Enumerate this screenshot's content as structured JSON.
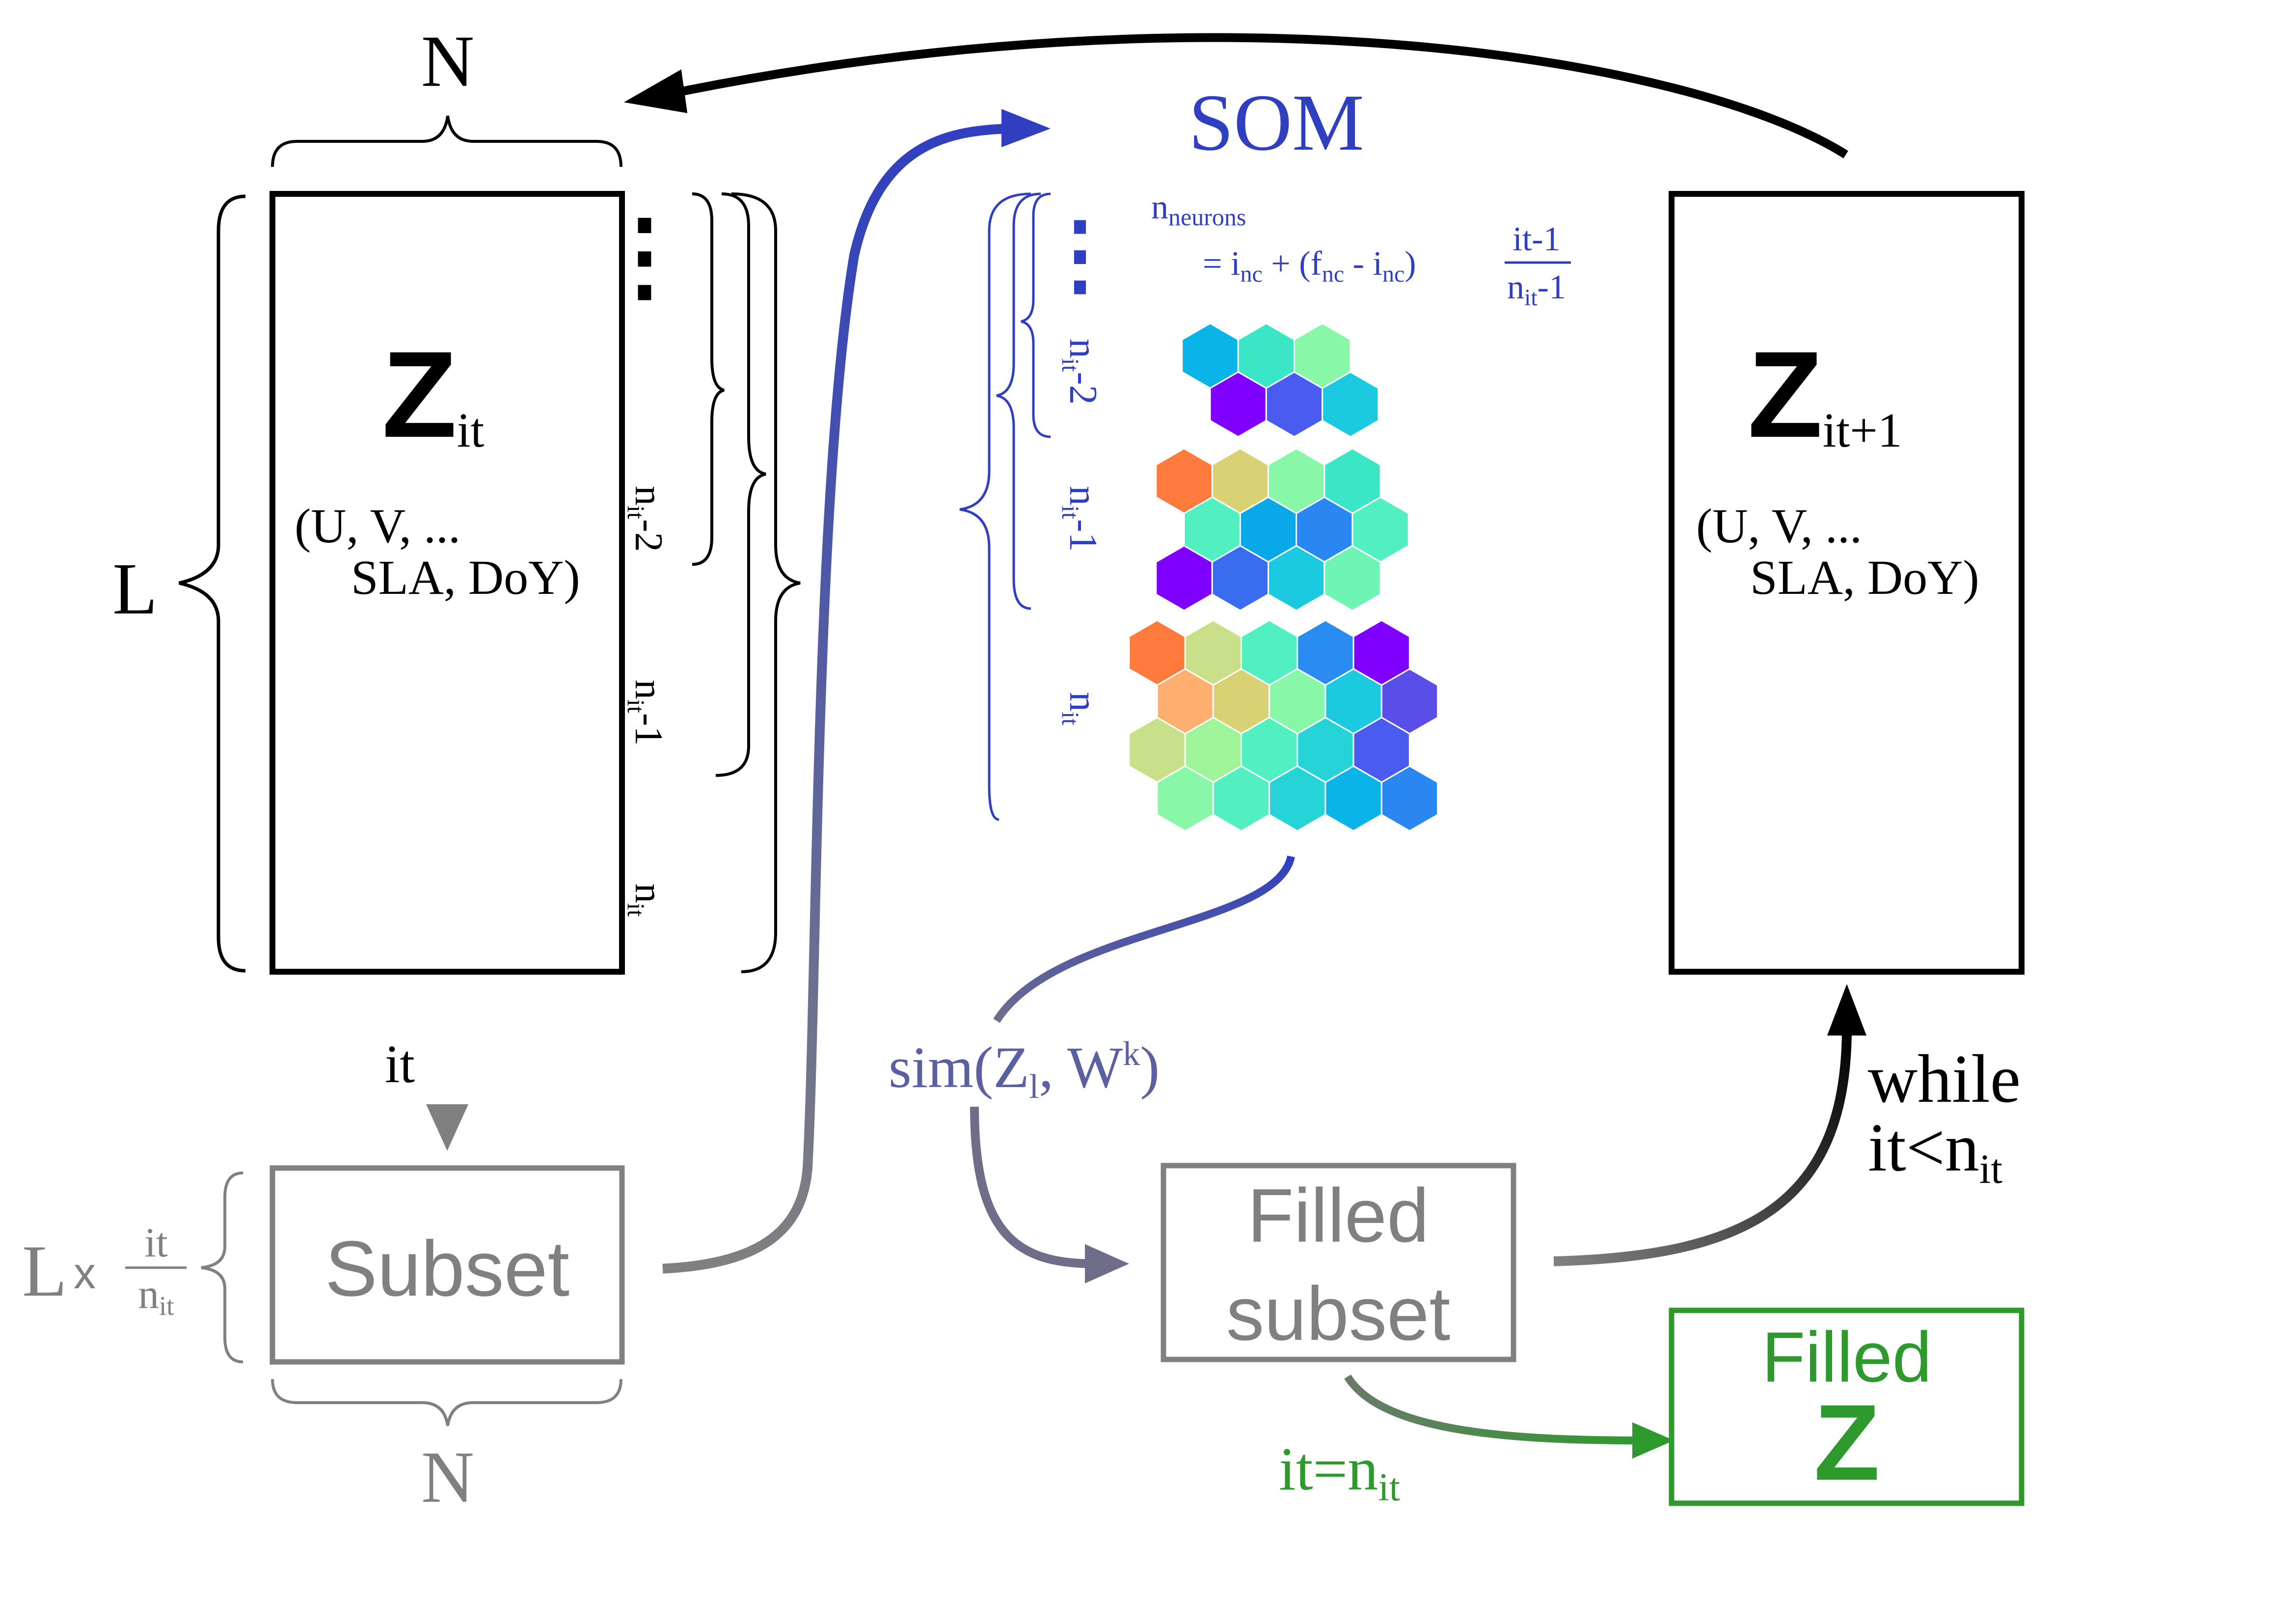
{
  "colors": {
    "black": "#000000",
    "blue": "#2f3fbf",
    "blue_sim": "#5a60a0",
    "gray": "#808080",
    "gray_dark": "#6f6f6f",
    "green": "#2e9a2e"
  },
  "matrix_left": {
    "width_label": "N",
    "height_label": "L",
    "title": "Z",
    "subscript": "it",
    "vars_line1": "(U, V, ...",
    "vars_line2": "SLA, DoY)",
    "dots": "⋮",
    "brace_labels": {
      "n_it_minus_2": {
        "base": "n",
        "sub": "it",
        "suffix": "-2"
      },
      "n_it_minus_1": {
        "base": "n",
        "sub": "it",
        "suffix": "-1"
      },
      "n_it": {
        "base": "n",
        "sub": "it"
      }
    }
  },
  "matrix_right": {
    "title": "Z",
    "subscript": "it+1",
    "vars_line1": "(U, V, ...",
    "vars_line2": "SLA, DoY)"
  },
  "arrow_down_label": "it",
  "subset": {
    "label": "Subset",
    "width_label": "N",
    "height_prefix": "L",
    "times": "x",
    "frac_num": "it",
    "frac_den": {
      "base": "n",
      "sub": "it"
    }
  },
  "som": {
    "title": "SOM",
    "formula": {
      "lhs": {
        "base": "n",
        "sub": "neurons"
      },
      "rhs_text_a": "= i",
      "rhs_sub_a": "nc",
      "rhs_text_b": " + (f",
      "rhs_sub_b": "nc",
      "rhs_text_c": " - i",
      "rhs_sub_c": "nc",
      "rhs_text_d": ")",
      "frac_num": "it-1",
      "frac_den": {
        "base": "n",
        "sub": "it",
        "suffix": "-1"
      }
    },
    "dots": "⋮",
    "brace_labels": {
      "n_it_minus_2": {
        "base": "n",
        "sub": "it",
        "suffix": "-2"
      },
      "n_it_minus_1": {
        "base": "n",
        "sub": "it",
        "suffix": "-1"
      },
      "n_it": {
        "base": "n",
        "sub": "it"
      }
    },
    "grid_small": {
      "rows": [
        [
          "#0ab4e8",
          "#3ae6c6",
          "#88f7a8"
        ],
        [
          "#8000ff",
          "#4a5cf0",
          "#1bc9e0"
        ]
      ]
    },
    "grid_medium": {
      "rows": [
        [
          "#ff7a3c",
          "#d8d274",
          "#88f7a8",
          "#3ae6c6"
        ],
        [
          "#52f0c0",
          "#0aa8e8",
          "#2a86f0",
          "#52f0c0"
        ],
        [
          "#8000ff",
          "#3a6cf0",
          "#1bc9e0",
          "#6ef4b4"
        ]
      ]
    },
    "grid_large": {
      "rows": [
        [
          "#ff7a3c",
          "#c8e08a",
          "#52f0c0",
          "#2a8cf0",
          "#8000ff"
        ],
        [
          "#ffb070",
          "#d8d274",
          "#88f7a8",
          "#1bc9e0",
          "#5a4ee8"
        ],
        [
          "#c8e08a",
          "#a0f59a",
          "#52f0c0",
          "#26d4d8",
          "#4a5cf0"
        ],
        [
          "#88f7a8",
          "#52f0c0",
          "#26d4d8",
          "#0ab4e8",
          "#2a86f0"
        ]
      ]
    }
  },
  "sim_label": {
    "a": "sim(Z",
    "sub_a": "l",
    "b": ", W",
    "sup_b": "k",
    "c": ")"
  },
  "filled_subset": {
    "line1": "Filled",
    "line2": "subset"
  },
  "while_label": {
    "line1": "while",
    "line2_a": "it<n",
    "line2_sub": "it"
  },
  "end_label": {
    "a": "it=n",
    "sub": "it"
  },
  "filled_z": {
    "line1": "Filled",
    "line2": "Z"
  }
}
